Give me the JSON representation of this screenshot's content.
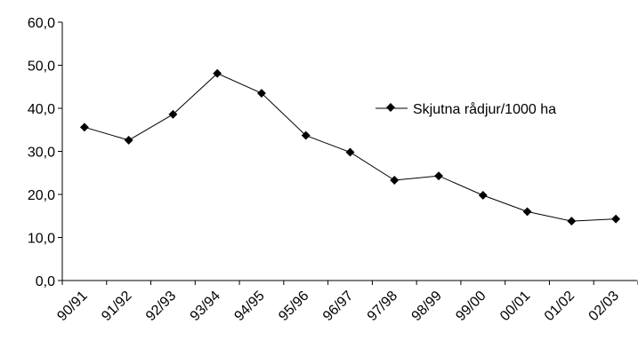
{
  "chart_data": {
    "type": "line",
    "categories": [
      "90/91",
      "91/92",
      "92/93",
      "93/94",
      "94/95",
      "95/96",
      "96/97",
      "97/98",
      "98/99",
      "99/00",
      "00/01",
      "01/02",
      "02/03"
    ],
    "series": [
      {
        "name": "Skjutna rådjur/1000 ha",
        "values": [
          35.6,
          32.6,
          38.6,
          48.1,
          43.5,
          33.7,
          29.8,
          23.3,
          24.3,
          19.8,
          16.0,
          13.8,
          14.3
        ]
      }
    ],
    "yticks": [
      "0,0",
      "10,0",
      "20,0",
      "30,0",
      "40,0",
      "50,0",
      "60,0"
    ],
    "ylim": [
      0,
      60
    ],
    "grid": false,
    "legend": "right",
    "colors": {
      "line": "#000000",
      "marker": "#000000",
      "axis": "#000000"
    }
  }
}
